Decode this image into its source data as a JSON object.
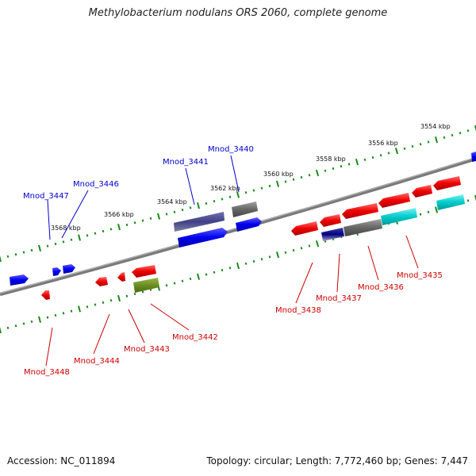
{
  "title": "Methylobacterium nodulans ORS 2060, complete genome",
  "footer": {
    "accession": "Accession: NC_011894",
    "summary": "Topology: circular; Length: 7,772,460 bp; Genes: 7,447"
  },
  "colors": {
    "forward_label": "#0000cc",
    "reverse_label": "#cc0000",
    "ruler_ticks": "#1a8a1a",
    "backbone": "#808080"
  },
  "scale_labels": [
    "3554 kbp",
    "3556 kbp",
    "3558 kbp",
    "3560 kbp",
    "3562 kbp",
    "3564 kbp",
    "3566 kbp",
    "3568 kbp"
  ],
  "forward_labels": [
    "Mnod_3447",
    "Mnod_3446",
    "Mnod_3441",
    "Mnod_3440"
  ],
  "reverse_labels": [
    "Mnod_3448",
    "Mnod_3444",
    "Mnod_3443",
    "Mnod_3442",
    "Mnod_3438",
    "Mnod_3437",
    "Mnod_3436",
    "Mnod_3435"
  ]
}
